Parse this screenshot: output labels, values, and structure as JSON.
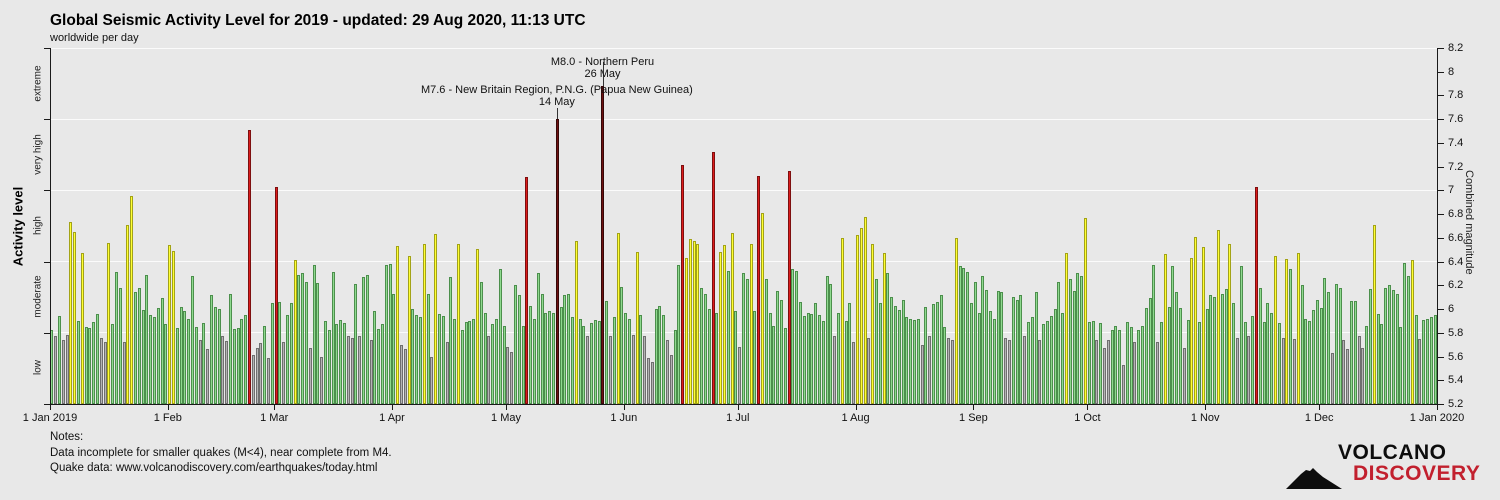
{
  "header": {
    "title": "Global Seismic Activity Level for 2019 - updated: 29 Aug 2020, 11:13 UTC",
    "subtitle": "worldwide per day"
  },
  "notes": {
    "heading": "Notes:",
    "line1": "Data incomplete for smaller quakes (M<4), near complete from M4.",
    "line2": "Quake data: www.volcanodiscovery.com/earthquakes/today.html"
  },
  "logo": {
    "top": "VOLCANO",
    "bottom": "DISCOVERY",
    "accent_color": "#c2202e"
  },
  "chart_data": {
    "type": "bar",
    "title": "Global Seismic Activity Level for 2019 - updated: 29 Aug 2020, 11:13 UTC",
    "subtitle": "worldwide per day",
    "ylabel_left": "Activity level",
    "ylabel_right": "Combined magnitude",
    "ylim": [
      5.2,
      8.2
    ],
    "y_tick_step": 0.2,
    "grid_boundaries": [
      5.8,
      6.4,
      7.0,
      7.6,
      8.2
    ],
    "activity_zones": [
      {
        "label": "low",
        "range": [
          5.2,
          5.8
        ],
        "fill": "#b4b4b4",
        "border": "#6f6f6f"
      },
      {
        "label": "moderate",
        "range": [
          5.8,
          6.4
        ],
        "fill": "#8fd98f",
        "border": "#4c8f4c"
      },
      {
        "label": "high",
        "range": [
          6.4,
          7.0
        ],
        "fill": "#ffff33",
        "border": "#a3a317"
      },
      {
        "label": "very high",
        "range": [
          7.0,
          7.6
        ],
        "fill": "#dd1c1c",
        "border": "#7e0f0f"
      },
      {
        "label": "extreme",
        "range": [
          7.6,
          8.2
        ],
        "fill": "#6e1111",
        "border": "#350808"
      }
    ],
    "x_tick_labels": [
      "1 Jan 2019",
      "1 Feb",
      "1 Mar",
      "1 Apr",
      "1 May",
      "1 Jun",
      "1 Jul",
      "1 Aug",
      "1 Sep",
      "1 Oct",
      "1 Nov",
      "1 Dec",
      "1 Jan 2020"
    ],
    "month_start_days": [
      0,
      31,
      59,
      90,
      120,
      151,
      181,
      212,
      243,
      273,
      304,
      334,
      365
    ],
    "annotations": [
      {
        "text_lines": [
          "M8.0 - Northern Peru",
          "26 May"
        ],
        "day": 146
      },
      {
        "text_lines": [
          "M7.6 - New Britain Region, P.N.G. (Papua New Guinea)",
          "14 May"
        ],
        "day": 134
      }
    ],
    "values_by_month": [
      [
        5.82,
        5.77,
        5.94,
        5.74,
        5.78,
        6.73,
        6.65,
        5.9,
        6.47,
        5.85,
        5.84,
        5.89,
        5.96,
        5.76,
        5.72,
        6.56,
        5.87,
        6.31,
        6.18,
        5.72,
        6.71,
        6.95,
        6.14,
        6.18,
        5.99,
        6.29,
        5.95,
        5.93,
        6.01,
        6.09,
        5.87
      ],
      [
        6.54,
        6.49,
        5.84,
        6.02,
        5.98,
        5.92,
        6.28,
        5.85,
        5.74,
        5.88,
        5.66,
        6.12,
        6.02,
        6.0,
        5.77,
        5.73,
        6.13,
        5.83,
        5.84,
        5.92,
        5.95,
        7.51,
        5.61,
        5.67,
        5.71,
        5.86,
        5.59,
        6.05
      ],
      [
        7.03,
        6.06,
        5.72,
        5.95,
        6.05,
        6.41,
        6.29,
        6.3,
        6.23,
        5.67,
        6.37,
        6.22,
        5.6,
        5.9,
        5.82,
        6.31,
        5.87,
        5.91,
        5.88,
        5.77,
        5.76,
        6.21,
        5.77,
        6.27,
        6.29,
        5.74,
        5.98,
        5.83,
        5.87,
        6.37,
        6.38
      ],
      [
        6.13,
        6.53,
        5.7,
        5.66,
        6.45,
        6.0,
        5.95,
        5.93,
        6.55,
        6.13,
        5.6,
        6.63,
        5.96,
        5.94,
        5.72,
        6.27,
        5.92,
        6.55,
        5.82,
        5.89,
        5.9,
        5.92,
        6.51,
        6.23,
        5.97,
        5.77,
        5.87,
        5.92,
        6.34,
        5.86
      ],
      [
        5.68,
        5.64,
        6.2,
        6.12,
        5.86,
        7.11,
        6.03,
        5.92,
        6.3,
        6.13,
        5.97,
        5.98,
        5.97,
        7.6,
        6.02,
        6.12,
        6.13,
        5.93,
        6.57,
        5.92,
        5.86,
        5.77,
        5.88,
        5.91,
        5.9,
        7.88,
        6.07,
        5.77,
        5.93,
        6.64,
        6.19
      ],
      [
        5.97,
        5.92,
        5.78,
        6.48,
        5.95,
        5.77,
        5.59,
        5.55,
        6.0,
        6.03,
        5.95,
        5.74,
        5.61,
        5.82,
        6.37,
        7.21,
        6.43,
        6.59,
        6.57,
        6.55,
        6.18,
        6.13,
        6.0,
        7.32,
        5.97,
        6.48,
        6.54,
        6.32,
        6.64,
        5.98
      ],
      [
        5.68,
        6.3,
        6.25,
        6.55,
        5.98,
        7.12,
        6.81,
        6.25,
        5.97,
        5.86,
        6.15,
        6.08,
        5.84,
        7.16,
        6.34,
        6.32,
        6.06,
        5.94,
        5.97,
        5.96,
        6.05,
        5.95,
        5.9,
        6.28,
        6.21,
        5.77,
        5.97,
        6.6,
        5.9,
        6.05,
        5.72
      ],
      [
        6.62,
        6.68,
        6.78,
        5.76,
        6.55,
        6.25,
        6.05,
        6.47,
        6.3,
        6.1,
        6.03,
        5.99,
        6.08,
        5.93,
        5.92,
        5.91,
        5.92,
        5.7,
        6.02,
        5.77,
        6.04,
        6.06,
        6.12,
        5.85,
        5.76,
        5.74,
        6.6,
        6.36,
        6.35,
        6.31,
        6.05
      ],
      [
        6.23,
        5.97,
        6.28,
        6.16,
        5.98,
        5.92,
        6.15,
        6.14,
        5.76,
        5.74,
        6.1,
        6.08,
        6.12,
        5.77,
        5.89,
        5.93,
        6.14,
        5.74,
        5.87,
        5.9,
        5.94,
        6.0,
        6.23,
        5.97,
        6.47,
        6.25,
        6.15,
        6.3,
        6.28,
        6.77
      ],
      [
        5.89,
        5.9,
        5.74,
        5.88,
        5.67,
        5.74,
        5.82,
        5.86,
        5.82,
        5.53,
        5.89,
        5.85,
        5.72,
        5.82,
        5.86,
        6.01,
        6.09,
        6.37,
        5.72,
        5.89,
        6.46,
        6.02,
        6.36,
        6.14,
        6.01,
        5.67,
        5.91,
        6.43,
        6.61,
        5.89,
        6.52
      ],
      [
        6.0,
        6.12,
        6.1,
        6.67,
        6.13,
        6.17,
        6.55,
        6.05,
        5.76,
        6.36,
        5.89,
        5.77,
        5.94,
        7.03,
        6.18,
        5.89,
        6.05,
        5.97,
        6.45,
        5.88,
        5.76,
        6.42,
        6.34,
        5.75,
        6.47,
        6.2,
        5.92,
        5.9,
        5.99,
        6.08
      ],
      [
        6.01,
        6.26,
        6.14,
        5.63,
        6.21,
        6.18,
        5.74,
        5.66,
        6.07,
        6.07,
        5.77,
        5.67,
        5.86,
        6.17,
        6.71,
        5.96,
        5.87,
        6.18,
        6.2,
        6.16,
        6.13,
        5.85,
        6.39,
        6.28,
        6.41,
        5.95,
        5.75,
        5.91,
        5.92,
        5.93,
        5.95
      ]
    ]
  }
}
